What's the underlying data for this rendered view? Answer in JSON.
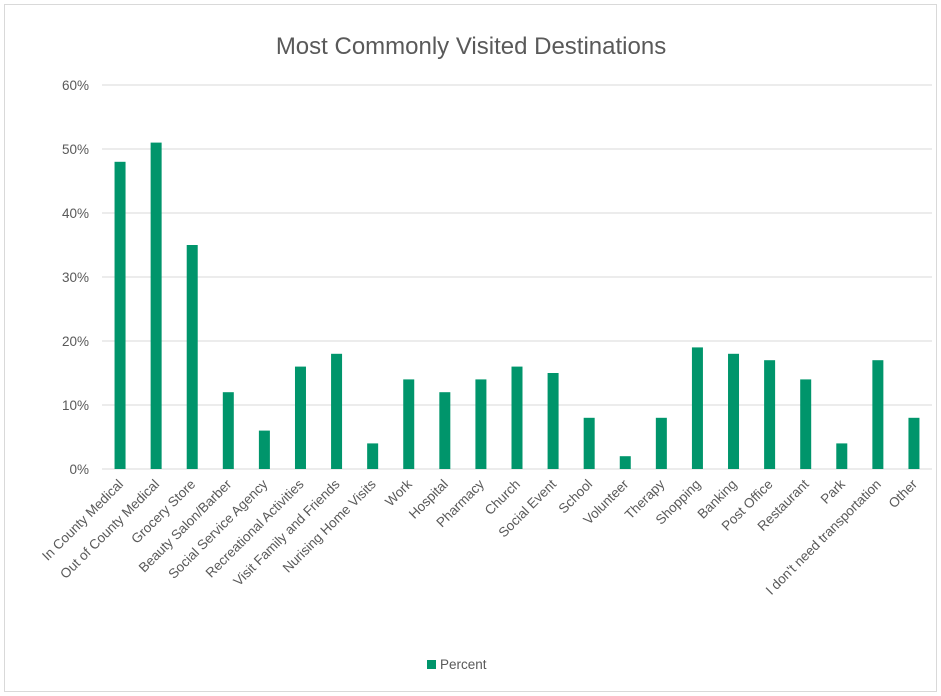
{
  "chart_data": {
    "type": "bar",
    "title": "Most Commonly Visited Destinations",
    "categories": [
      "In County Medical",
      "Out of County Medical",
      "Grocery Store",
      "Beauty Salon/Barber",
      "Social Service Agency",
      "Recreational Activities",
      "Visit Family and Friends",
      "Nurising Home Visits",
      "Work",
      "Hospital",
      "Pharmacy",
      "Church",
      "Social Event",
      "School",
      "Volunteer",
      "Therapy",
      "Shopping",
      "Banking",
      "Post Office",
      "Restaurant",
      "Park",
      "I don't need transportation",
      "Other"
    ],
    "series": [
      {
        "name": "Percent",
        "values": [
          48,
          51,
          35,
          12,
          6,
          16,
          18,
          4,
          14,
          12,
          14,
          16,
          15,
          8,
          2,
          8,
          19,
          18,
          17,
          14,
          4,
          17,
          8
        ]
      }
    ],
    "ylim": [
      0,
      60
    ],
    "yticks": [
      "0%",
      "10%",
      "20%",
      "30%",
      "40%",
      "50%",
      "60%"
    ],
    "grid": true,
    "legend_position": "bottom",
    "colors": {
      "bar": "#00956b",
      "grid": "#d9d9d9",
      "text": "#595959"
    }
  }
}
